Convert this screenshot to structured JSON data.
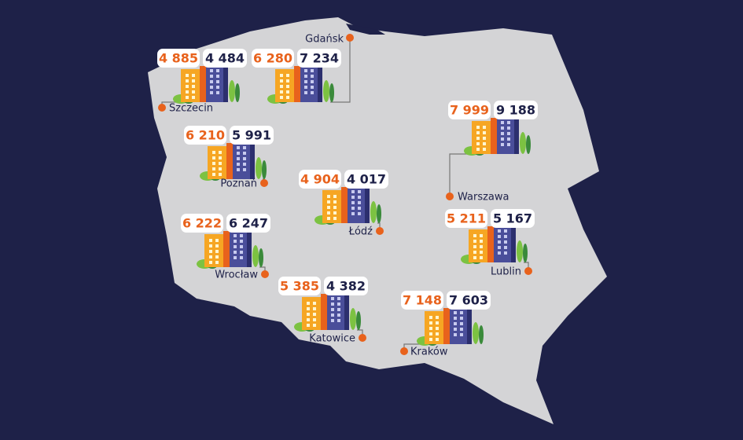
{
  "cities": [
    {
      "name": "Gdańsk",
      "orange": "6 280",
      "navy": "7 234"
    },
    {
      "name": "Szczecin",
      "orange": "4 885",
      "navy": "4 484"
    },
    {
      "name": "Warszawa",
      "orange": "7 999",
      "navy": "9 188"
    },
    {
      "name": "Poznań",
      "orange": "6 210",
      "navy": "5 991"
    },
    {
      "name": "Łódź",
      "orange": "4 904",
      "navy": "4 017"
    },
    {
      "name": "Wrocław",
      "orange": "6 222",
      "navy": "6 247"
    },
    {
      "name": "Lublin",
      "orange": "5 211",
      "navy": "5 167"
    },
    {
      "name": "Katowice",
      "orange": "5 385",
      "navy": "4 382"
    },
    {
      "name": "Kraków",
      "orange": "7 148",
      "navy": "7 603"
    }
  ]
}
